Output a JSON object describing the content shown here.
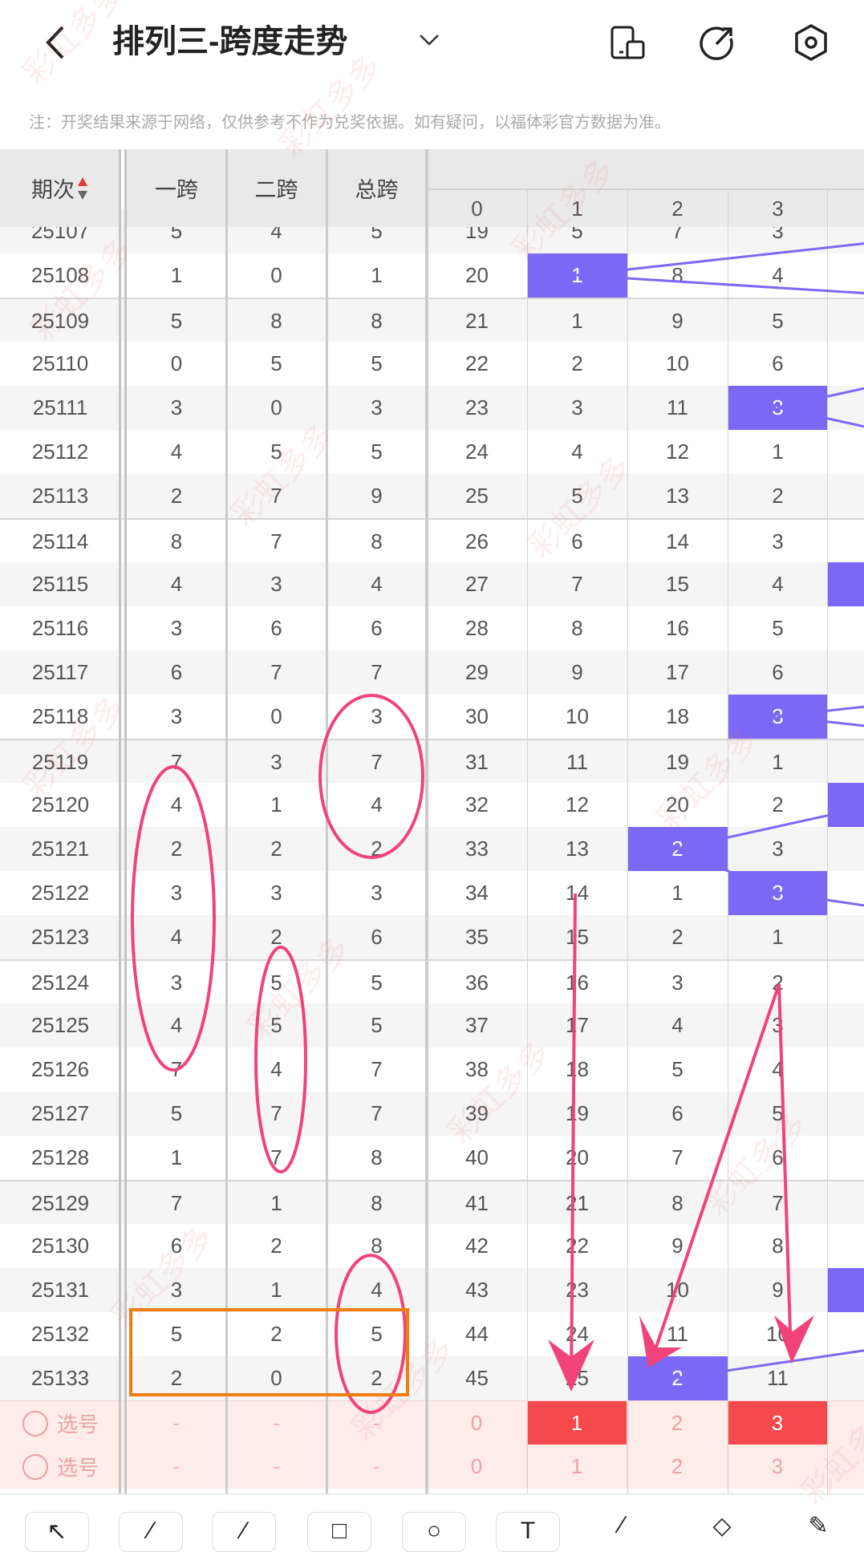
{
  "header": {
    "title": "排列三-跨度走势",
    "back_icon": "chevron-left-icon",
    "dropdown_icon": "chevron-down-icon",
    "actions": [
      "phone-layout-icon",
      "share-icon",
      "settings-icon"
    ]
  },
  "note": "注：开奖结果来源于网络，仅供参考不作为兑奖依据。如有疑问，以福体彩官方数据为准。",
  "columns": {
    "period": "期次",
    "span1": "一跨",
    "span2": "二跨",
    "total": "总跨",
    "digits": [
      "0",
      "1",
      "2",
      "3"
    ]
  },
  "colors": {
    "highlight": "#7b68f5",
    "selected": "#f5494d",
    "annotation": "#f0437a",
    "box": "#f07d10",
    "select_row_bg": "#fdece8"
  },
  "rows": [
    {
      "period": "25107",
      "s1": "5",
      "s2": "4",
      "total": 5,
      "miss": [
        "19",
        "5",
        "7",
        "3"
      ]
    },
    {
      "period": "25108",
      "s1": "1",
      "s2": "0",
      "total": 1,
      "miss": [
        "20",
        "1",
        "8",
        "4"
      ]
    },
    {
      "period": "25109",
      "s1": "5",
      "s2": "8",
      "total": 8,
      "miss": [
        "21",
        "1",
        "9",
        "5"
      ]
    },
    {
      "period": "25110",
      "s1": "0",
      "s2": "5",
      "total": 5,
      "miss": [
        "22",
        "2",
        "10",
        "6"
      ]
    },
    {
      "period": "25111",
      "s1": "3",
      "s2": "0",
      "total": 3,
      "miss": [
        "23",
        "3",
        "11",
        "3"
      ]
    },
    {
      "period": "25112",
      "s1": "4",
      "s2": "5",
      "total": 5,
      "miss": [
        "24",
        "4",
        "12",
        "1"
      ]
    },
    {
      "period": "25113",
      "s1": "2",
      "s2": "7",
      "total": 9,
      "miss": [
        "25",
        "5",
        "13",
        "2"
      ]
    },
    {
      "period": "25114",
      "s1": "8",
      "s2": "7",
      "total": 8,
      "miss": [
        "26",
        "6",
        "14",
        "3"
      ]
    },
    {
      "period": "25115",
      "s1": "4",
      "s2": "3",
      "total": 4,
      "miss": [
        "27",
        "7",
        "15",
        "4"
      ]
    },
    {
      "period": "25116",
      "s1": "3",
      "s2": "6",
      "total": 6,
      "miss": [
        "28",
        "8",
        "16",
        "5"
      ]
    },
    {
      "period": "25117",
      "s1": "6",
      "s2": "7",
      "total": 7,
      "miss": [
        "29",
        "9",
        "17",
        "6"
      ]
    },
    {
      "period": "25118",
      "s1": "3",
      "s2": "0",
      "total": 3,
      "miss": [
        "30",
        "10",
        "18",
        "3"
      ]
    },
    {
      "period": "25119",
      "s1": "7",
      "s2": "3",
      "total": 7,
      "miss": [
        "31",
        "11",
        "19",
        "1"
      ]
    },
    {
      "period": "25120",
      "s1": "4",
      "s2": "1",
      "total": 4,
      "miss": [
        "32",
        "12",
        "20",
        "2"
      ]
    },
    {
      "period": "25121",
      "s1": "2",
      "s2": "2",
      "total": 2,
      "miss": [
        "33",
        "13",
        "2",
        "3"
      ]
    },
    {
      "period": "25122",
      "s1": "3",
      "s2": "3",
      "total": 3,
      "miss": [
        "34",
        "14",
        "1",
        "3"
      ]
    },
    {
      "period": "25123",
      "s1": "4",
      "s2": "2",
      "total": 6,
      "miss": [
        "35",
        "15",
        "2",
        "1"
      ]
    },
    {
      "period": "25124",
      "s1": "3",
      "s2": "5",
      "total": 5,
      "miss": [
        "36",
        "16",
        "3",
        "2"
      ]
    },
    {
      "period": "25125",
      "s1": "4",
      "s2": "5",
      "total": 5,
      "miss": [
        "37",
        "17",
        "4",
        "3"
      ]
    },
    {
      "period": "25126",
      "s1": "7",
      "s2": "4",
      "total": 7,
      "miss": [
        "38",
        "18",
        "5",
        "4"
      ]
    },
    {
      "period": "25127",
      "s1": "5",
      "s2": "7",
      "total": 7,
      "miss": [
        "39",
        "19",
        "6",
        "5"
      ]
    },
    {
      "period": "25128",
      "s1": "1",
      "s2": "7",
      "total": 8,
      "miss": [
        "40",
        "20",
        "7",
        "6"
      ]
    },
    {
      "period": "25129",
      "s1": "7",
      "s2": "1",
      "total": 8,
      "miss": [
        "41",
        "21",
        "8",
        "7"
      ]
    },
    {
      "period": "25130",
      "s1": "6",
      "s2": "2",
      "total": 8,
      "miss": [
        "42",
        "22",
        "9",
        "8"
      ]
    },
    {
      "period": "25131",
      "s1": "3",
      "s2": "1",
      "total": 4,
      "miss": [
        "43",
        "23",
        "10",
        "9"
      ]
    },
    {
      "period": "25132",
      "s1": "5",
      "s2": "2",
      "total": 5,
      "miss": [
        "44",
        "24",
        "11",
        "10"
      ]
    },
    {
      "period": "25133",
      "s1": "2",
      "s2": "0",
      "total": 2,
      "miss": [
        "45",
        "25",
        "2",
        "11"
      ]
    }
  ],
  "select_rows": [
    {
      "label": "选号",
      "dash": "-",
      "digits": [
        "0",
        "1",
        "2",
        "3"
      ],
      "selected": [
        false,
        true,
        false,
        true
      ]
    },
    {
      "label": "选号",
      "dash": "-",
      "digits": [
        "0",
        "1",
        "2",
        "3"
      ],
      "selected": [
        false,
        false,
        false,
        false
      ]
    }
  ],
  "toolbar": [
    "arrow-tool-icon",
    "line-tool-icon",
    "curve-tool-icon",
    "rectangle-tool-icon",
    "circle-tool-icon",
    "text-tool-icon",
    "pen-tool-icon",
    "eraser-tool-icon",
    "clear-tool-icon"
  ],
  "watermark": "彩虹多多"
}
